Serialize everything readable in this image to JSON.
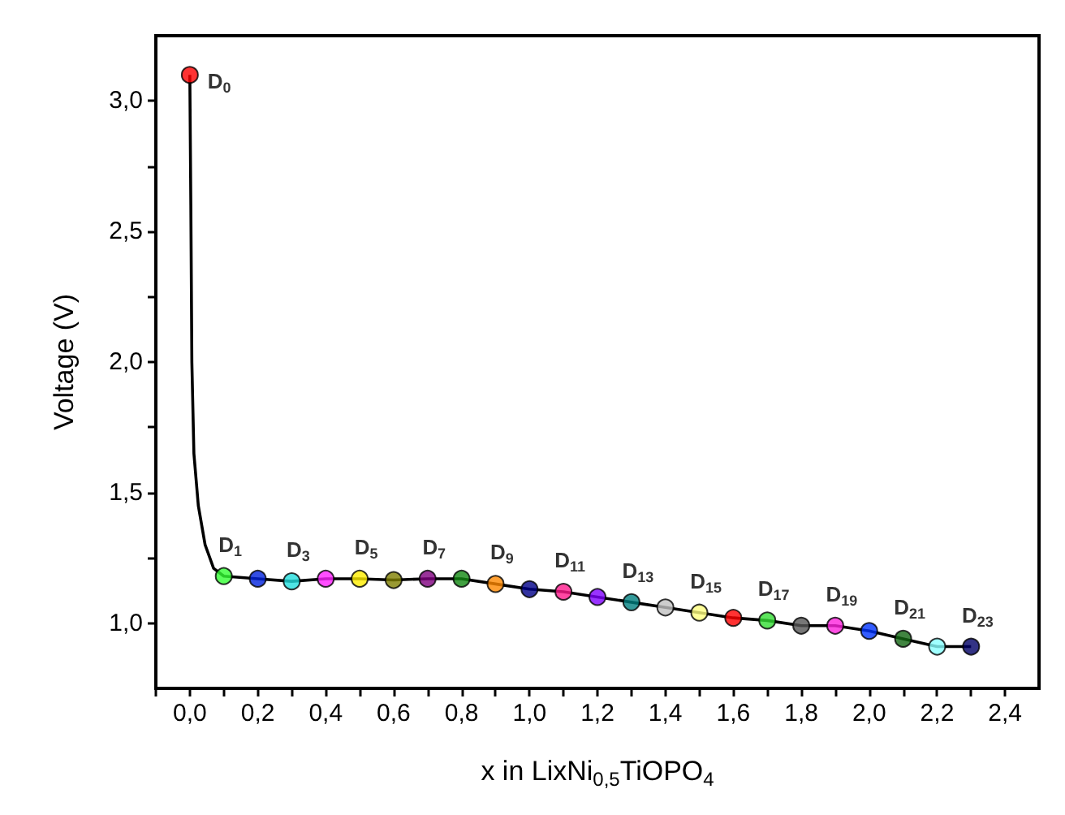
{
  "chart_data": {
    "type": "line",
    "xlabel": "x in LixNi$_{0,5}$TiOPO$_{4}$",
    "ylabel": "Voltage (V)",
    "xlim": [
      -0.1,
      2.5
    ],
    "ylim": [
      0.75,
      3.25
    ],
    "xticks": [
      {
        "value": -0.1,
        "label": null
      },
      {
        "value": 0,
        "label": "0,0"
      },
      {
        "value": 0.1,
        "label": null
      },
      {
        "value": 0.2,
        "label": "0,2"
      },
      {
        "value": 0.3,
        "label": null
      },
      {
        "value": 0.4,
        "label": "0,4"
      },
      {
        "value": 0.5,
        "label": null
      },
      {
        "value": 0.6,
        "label": "0,6"
      },
      {
        "value": 0.7,
        "label": null
      },
      {
        "value": 0.8,
        "label": "0,8"
      },
      {
        "value": 0.9,
        "label": null
      },
      {
        "value": 1.0,
        "label": "1,0"
      },
      {
        "value": 1.1,
        "label": null
      },
      {
        "value": 1.2,
        "label": "1,2"
      },
      {
        "value": 1.3,
        "label": null
      },
      {
        "value": 1.4,
        "label": "1,4"
      },
      {
        "value": 1.5,
        "label": null
      },
      {
        "value": 1.6,
        "label": "1,6"
      },
      {
        "value": 1.7,
        "label": null
      },
      {
        "value": 1.8,
        "label": "1,8"
      },
      {
        "value": 1.9,
        "label": null
      },
      {
        "value": 2.0,
        "label": "2,0"
      },
      {
        "value": 2.1,
        "label": null
      },
      {
        "value": 2.2,
        "label": "2,2"
      },
      {
        "value": 2.3,
        "label": null
      },
      {
        "value": 2.4,
        "label": "2,4"
      }
    ],
    "yticks": [
      {
        "value": 1.0,
        "label": "1,0"
      },
      {
        "value": 1.25,
        "label": null
      },
      {
        "value": 1.5,
        "label": "1,5"
      },
      {
        "value": 1.75,
        "label": null
      },
      {
        "value": 2.0,
        "label": "2,0"
      },
      {
        "value": 2.25,
        "label": null
      },
      {
        "value": 2.5,
        "label": "2,5"
      },
      {
        "value": 2.75,
        "label": null
      },
      {
        "value": 3.0,
        "label": "3,0"
      }
    ],
    "series": [
      {
        "color": "#000000",
        "marker": "none",
        "x": [
          0,
          0.003,
          0.006,
          0.012,
          0.025,
          0.045,
          0.07,
          0.1,
          0.2,
          0.3,
          0.4,
          0.5,
          0.6,
          0.7,
          0.8,
          0.9,
          1.0,
          1.1,
          1.2,
          1.3,
          1.4,
          1.5,
          1.6,
          1.7,
          1.8,
          1.9,
          2.0,
          2.1,
          2.2,
          2.3
        ],
        "values": [
          3.1,
          2.6,
          2.0,
          1.65,
          1.45,
          1.3,
          1.21,
          1.18,
          1.17,
          1.16,
          1.17,
          1.17,
          1.165,
          1.17,
          1.17,
          1.15,
          1.13,
          1.12,
          1.1,
          1.08,
          1.06,
          1.04,
          1.02,
          1.01,
          0.99,
          0.99,
          0.97,
          0.94,
          0.91,
          0.91
        ]
      },
      {
        "type": "scatter",
        "marker": "circle",
        "x": [
          0,
          0.1,
          0.2,
          0.3,
          0.4,
          0.5,
          0.6,
          0.7,
          0.8,
          0.9,
          1.0,
          1.1,
          1.2,
          1.3,
          1.4,
          1.5,
          1.6,
          1.7,
          1.8,
          1.9,
          2.0,
          2.1,
          2.2,
          2.3
        ],
        "values": [
          3.1,
          1.18,
          1.17,
          1.16,
          1.17,
          1.17,
          1.165,
          1.17,
          1.17,
          1.15,
          1.13,
          1.12,
          1.1,
          1.08,
          1.06,
          1.04,
          1.02,
          1.01,
          0.99,
          0.99,
          0.97,
          0.94,
          0.91,
          0.91
        ],
        "colors": [
          "#ff0000",
          "#33ff33",
          "#0022dd",
          "#22dddd",
          "#ff22ff",
          "#ffee00",
          "#808000",
          "#800080",
          "#118811",
          "#ff8800",
          "#000088",
          "#ff1a8c",
          "#8000ff",
          "#008080",
          "#c0c0c0",
          "#ffff80",
          "#ff0000",
          "#33dd33",
          "#555555",
          "#ff22dd",
          "#0033ff",
          "#116611",
          "#88ffff",
          "#000066"
        ]
      }
    ],
    "annotations": [
      {
        "text": "D$_{0}$",
        "x": 0,
        "y": 3.1
      },
      {
        "text": "D$_{1}$",
        "x": 0.1,
        "y": 1.18
      },
      {
        "text": "D$_{3}$",
        "x": 0.3,
        "y": 1.16
      },
      {
        "text": "D$_{5}$",
        "x": 0.5,
        "y": 1.17
      },
      {
        "text": "D$_{7}$",
        "x": 0.7,
        "y": 1.17
      },
      {
        "text": "D$_{9}$",
        "x": 0.9,
        "y": 1.15
      },
      {
        "text": "D$_{11}$",
        "x": 1.1,
        "y": 1.12
      },
      {
        "text": "D$_{13}$",
        "x": 1.3,
        "y": 1.08
      },
      {
        "text": "D$_{15}$",
        "x": 1.5,
        "y": 1.04
      },
      {
        "text": "D$_{17}$",
        "x": 1.7,
        "y": 1.01
      },
      {
        "text": "D$_{19}$",
        "x": 1.9,
        "y": 0.99
      },
      {
        "text": "D$_{21}$",
        "x": 2.1,
        "y": 0.94
      },
      {
        "text": "D$_{23}$",
        "x": 2.3,
        "y": 0.91
      }
    ]
  }
}
